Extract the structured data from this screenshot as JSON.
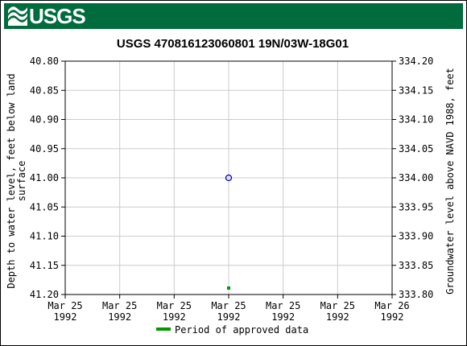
{
  "banner": {
    "logo_text": "USGS",
    "color": "#006b3c"
  },
  "chart_data": {
    "type": "scatter",
    "title": "USGS 470816123060801 19N/03W-18G01",
    "ylabel_left": [
      "Depth to water level, feet below land",
      "surface"
    ],
    "ylabel_right": "Groundwater level above NAVD 1988, feet",
    "yleft_ticks": [
      "40.80",
      "40.85",
      "40.90",
      "40.95",
      "41.00",
      "41.05",
      "41.10",
      "41.15",
      "41.20"
    ],
    "yright_ticks": [
      "334.20",
      "334.15",
      "334.10",
      "334.05",
      "334.00",
      "333.95",
      "333.90",
      "333.85",
      "333.80"
    ],
    "yleft_range": [
      40.8,
      41.2
    ],
    "yright_range": [
      334.2,
      333.8
    ],
    "x_ticks": [
      {
        "line1": "Mar 25",
        "line2": "1992"
      },
      {
        "line1": "Mar 25",
        "line2": "1992"
      },
      {
        "line1": "Mar 25",
        "line2": "1992"
      },
      {
        "line1": "Mar 25",
        "line2": "1992"
      },
      {
        "line1": "Mar 25",
        "line2": "1992"
      },
      {
        "line1": "Mar 25",
        "line2": "1992"
      },
      {
        "line1": "Mar 26",
        "line2": "1992"
      }
    ],
    "x_range": [
      "1992-03-25T00:00",
      "1992-03-26T00:00"
    ],
    "points": [
      {
        "x": "1992-03-25T12:00",
        "y": 41.0,
        "marker": "open-circle",
        "color": "#0000cc"
      }
    ],
    "approved_period": {
      "x": "1992-03-25T12:00",
      "color": "#009900"
    },
    "grid": true,
    "legend": {
      "label": "Period of approved data",
      "color": "#009900",
      "position": "bottom"
    }
  }
}
